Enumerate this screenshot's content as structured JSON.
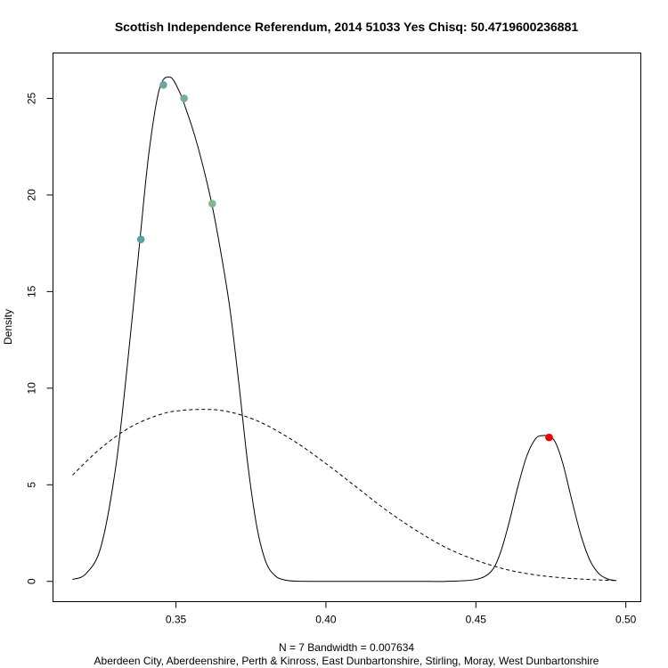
{
  "chart_data": {
    "type": "line",
    "title": "Scottish Independence Referendum, 2014 51033 Yes Chisq: 50.4719600236881",
    "xlabel_line1": "N = 7   Bandwidth = 0.007634",
    "xlabel_line2": "Aberdeen City, Aberdeenshire, Perth & Kinross, East Dunbartonshire, Stirling, Moray, West Dunbartonshire",
    "ylabel": "Density",
    "xlim": [
      0.309,
      0.505
    ],
    "ylim": [
      -1.05,
      27.35
    ],
    "x_ticks": [
      0.35,
      0.4,
      0.45,
      0.5
    ],
    "x_tick_labels": [
      "0.35",
      "0.40",
      "0.45",
      "0.50"
    ],
    "y_ticks": [
      0,
      5,
      10,
      15,
      20,
      25
    ],
    "y_tick_labels": [
      "0",
      "5",
      "10",
      "15",
      "20",
      "25"
    ],
    "grid": false,
    "series": [
      {
        "style": "solid",
        "color": "#000000",
        "x": [
          0.3155,
          0.32,
          0.325,
          0.33,
          0.334,
          0.338,
          0.341,
          0.3445,
          0.348,
          0.351,
          0.353,
          0.356,
          0.359,
          0.362,
          0.365,
          0.368,
          0.371,
          0.374,
          0.377,
          0.38,
          0.383,
          0.386,
          0.39,
          0.4,
          0.41,
          0.42,
          0.43,
          0.44,
          0.45,
          0.455,
          0.458,
          0.461,
          0.464,
          0.467,
          0.47,
          0.4725,
          0.4745,
          0.4765,
          0.479,
          0.482,
          0.485,
          0.488,
          0.491,
          0.494,
          0.4968
        ],
        "y": [
          0.1,
          0.4,
          1.8,
          6.0,
          11.5,
          17.7,
          22.2,
          25.5,
          26.1,
          25.4,
          24.6,
          23.2,
          21.5,
          19.5,
          17.0,
          14.1,
          10.2,
          6.0,
          2.8,
          1.0,
          0.3,
          0.08,
          0.01,
          0.0,
          0.0,
          0.0,
          0.0,
          0.0,
          0.1,
          0.5,
          1.4,
          3.0,
          4.9,
          6.5,
          7.4,
          7.55,
          7.5,
          7.2,
          6.1,
          4.2,
          2.4,
          1.1,
          0.4,
          0.12,
          0.04
        ]
      },
      {
        "style": "dashed",
        "color": "#000000",
        "x": [
          0.3155,
          0.325,
          0.335,
          0.345,
          0.352,
          0.359,
          0.365,
          0.372,
          0.38,
          0.39,
          0.4,
          0.41,
          0.42,
          0.43,
          0.44,
          0.45,
          0.46,
          0.47,
          0.48,
          0.49,
          0.4968
        ],
        "y": [
          5.5,
          6.9,
          8.0,
          8.65,
          8.85,
          8.9,
          8.85,
          8.6,
          8.1,
          7.2,
          6.1,
          4.9,
          3.7,
          2.65,
          1.75,
          1.1,
          0.62,
          0.33,
          0.17,
          0.08,
          0.04
        ]
      }
    ],
    "points": [
      {
        "x": 0.3383,
        "y": 17.7,
        "color": "#5aa0a8"
      },
      {
        "x": 0.3458,
        "y": 25.7,
        "color": "#68a8a0"
      },
      {
        "x": 0.3527,
        "y": 25.0,
        "color": "#72ae98"
      },
      {
        "x": 0.3621,
        "y": 19.55,
        "color": "#7eb88c"
      },
      {
        "x": 0.4744,
        "y": 7.45,
        "color": "#ee0000"
      }
    ]
  }
}
